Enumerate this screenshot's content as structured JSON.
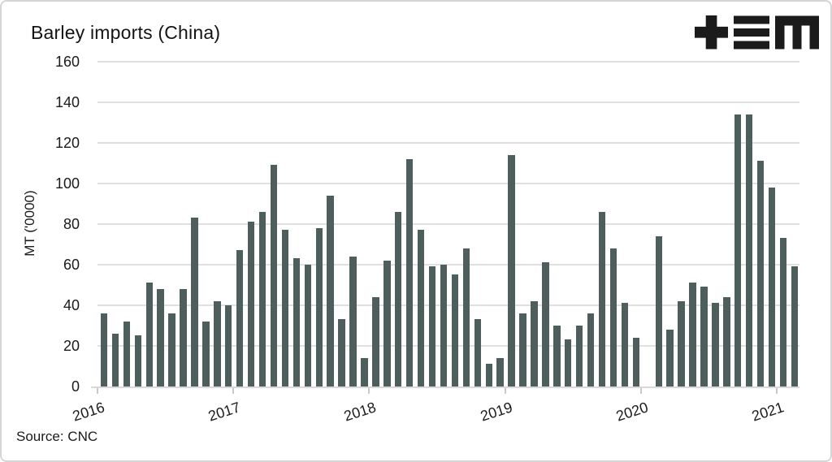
{
  "header": {
    "title": "Barley imports (China)",
    "logo_icon": "plus-threebars-m-logo"
  },
  "footer": {
    "source": "Source: CNC"
  },
  "colors": {
    "bar": "#4d5e5c",
    "grid": "#e0e0e0",
    "axis": "#d8d8d8",
    "tick": "#c9c9c9",
    "text": "#1a1a1a",
    "border": "#d5d5d5",
    "logo": "#1b1b1b",
    "background": "#ffffff"
  },
  "chart_data": {
    "type": "bar",
    "title": "Barley imports (China)",
    "ylabel": "MT ('0000)",
    "xlabel": "",
    "source": "Source: CNC",
    "legend": "none",
    "grid": "horizontal",
    "ylim": [
      0,
      160
    ],
    "yticks": [
      0,
      20,
      40,
      60,
      80,
      100,
      120,
      140,
      160
    ],
    "x_tick_labels": [
      "2016",
      "2017",
      "2018",
      "2019",
      "2020",
      "2021"
    ],
    "x_start_month": "2016-01",
    "x_end_month": "2021-02",
    "missing_months": [
      "2020-01"
    ],
    "values": [
      36,
      26,
      32,
      25,
      51,
      48,
      36,
      48,
      83,
      32,
      42,
      40,
      67,
      81,
      86,
      109,
      77,
      63,
      60,
      78,
      94,
      33,
      64,
      14,
      44,
      62,
      86,
      112,
      77,
      59,
      60,
      55,
      68,
      33,
      11,
      14,
      114,
      36,
      42,
      61,
      30,
      23,
      30,
      36,
      86,
      68,
      41,
      24,
      null,
      74,
      28,
      42,
      51,
      49,
      41,
      44,
      134,
      134,
      111,
      98,
      73,
      59
    ]
  }
}
